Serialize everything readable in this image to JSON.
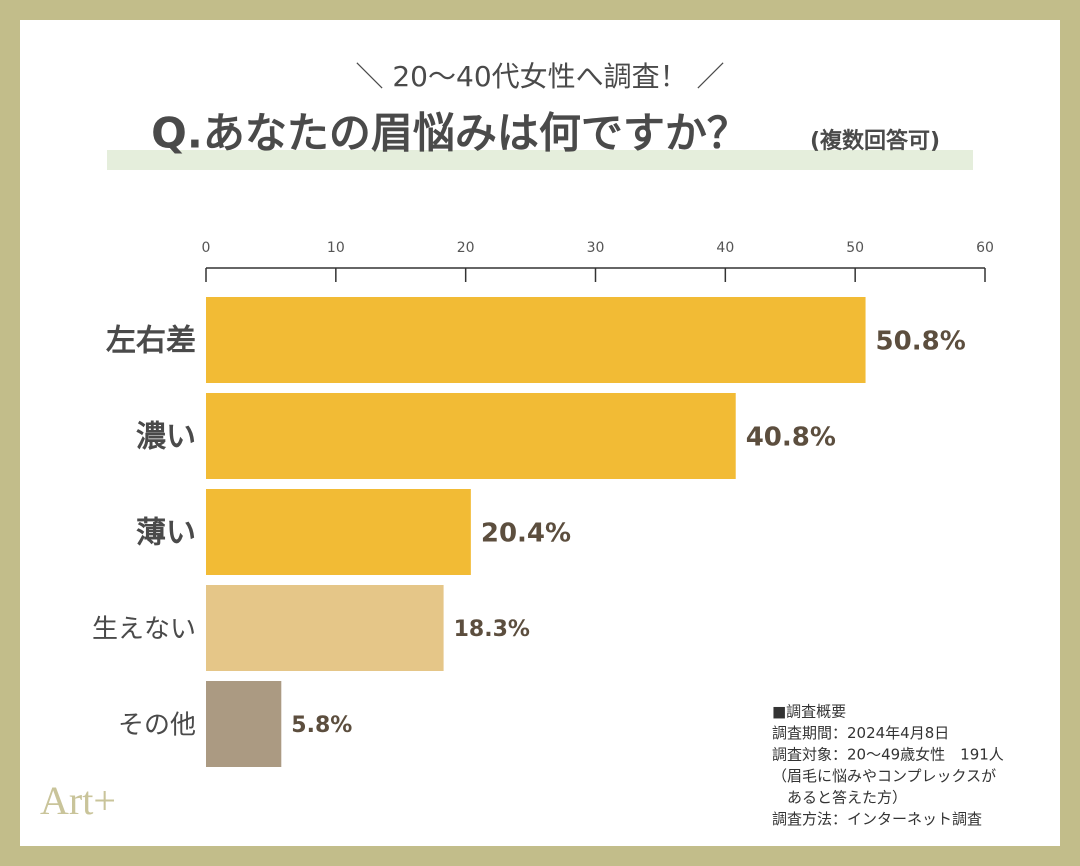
{
  "chart_data": {
    "type": "bar",
    "orientation": "horizontal",
    "subtitle": "＼ 20〜40代女性へ調査！ ／",
    "title": "Q.あなたの眉悩みは何ですか？",
    "title_note": "(複数回答可)",
    "categories": [
      "左右差",
      "濃い",
      "薄い",
      "生えない",
      "その他"
    ],
    "values": [
      50.8,
      40.8,
      20.4,
      18.3,
      5.8
    ],
    "value_labels": [
      "50.8%",
      "40.8%",
      "20.4%",
      "18.3%",
      "5.8%"
    ],
    "colors": [
      "#f2bb35",
      "#f2bb35",
      "#f2bb35",
      "#e5c688",
      "#ab9a82"
    ],
    "xlim": [
      0,
      60
    ],
    "xticks": [
      0,
      10,
      20,
      30,
      40,
      50,
      60
    ],
    "notes": [
      "■調査概要",
      "調査期間：2024年4月8日",
      "調査対象：20〜49歳女性　191人",
      "（眉毛に悩みやコンプレックスが",
      "　あると答えた方）",
      "調査方法：インターネット調査"
    ],
    "logo": "Art+"
  }
}
